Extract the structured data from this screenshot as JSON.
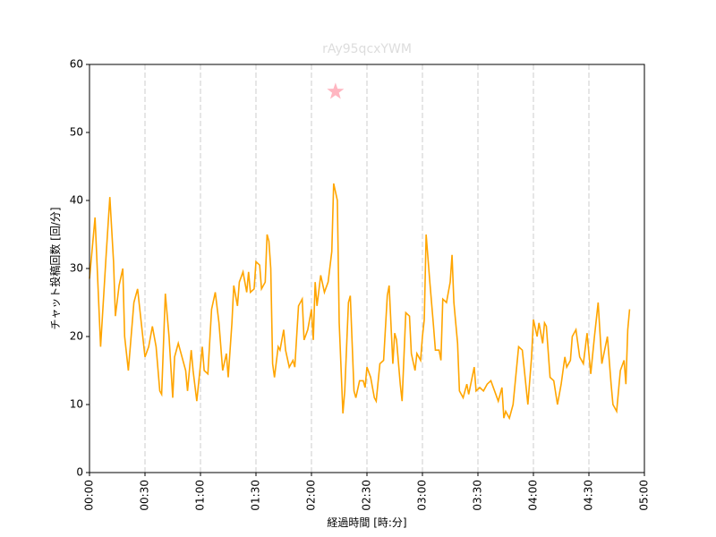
{
  "chart_data": {
    "type": "line",
    "title": "rAy95qcxYWM",
    "xlabel": "経過時間 [時:分]",
    "ylabel": "チャット投稿回数 [回/分]",
    "xlim": [
      0,
      300
    ],
    "ylim": [
      0,
      60
    ],
    "xticks": [
      {
        "value": 0,
        "label": "00:00"
      },
      {
        "value": 30,
        "label": "00:30"
      },
      {
        "value": 60,
        "label": "01:00"
      },
      {
        "value": 90,
        "label": "01:30"
      },
      {
        "value": 120,
        "label": "02:00"
      },
      {
        "value": 150,
        "label": "02:30"
      },
      {
        "value": 180,
        "label": "03:00"
      },
      {
        "value": 210,
        "label": "03:30"
      },
      {
        "value": 240,
        "label": "04:00"
      },
      {
        "value": 270,
        "label": "04:30"
      },
      {
        "value": 300,
        "label": "05:00"
      }
    ],
    "yticks": [
      0,
      10,
      20,
      30,
      40,
      50,
      60
    ],
    "grid": "x",
    "series": [
      {
        "color": "#ffa500",
        "x": [
          0,
          3,
          6,
          9,
          11,
          13,
          14,
          16,
          18,
          19,
          21,
          24,
          26,
          28,
          30,
          32,
          34,
          36,
          38,
          39,
          41,
          43,
          45,
          46,
          48,
          50,
          52,
          53,
          55,
          56,
          58,
          61,
          62,
          64,
          66,
          68,
          70,
          72,
          74,
          75,
          77,
          78,
          80,
          81,
          83,
          85,
          86,
          87,
          89,
          90,
          92,
          93,
          95,
          96,
          97,
          98,
          99,
          100,
          102,
          103,
          105,
          106,
          108,
          110,
          111,
          113,
          115,
          116,
          118,
          120,
          121,
          122,
          123,
          125,
          127,
          129,
          131,
          132,
          134,
          135,
          137,
          138,
          140,
          141,
          143,
          144,
          146,
          148,
          149,
          150,
          152,
          154,
          155,
          157,
          159,
          161,
          162,
          164,
          165,
          166,
          168,
          169,
          171,
          173,
          174,
          176,
          177,
          179,
          180,
          181,
          182,
          184,
          186,
          187,
          189,
          190,
          191,
          193,
          195,
          196,
          197,
          199,
          200,
          202,
          204,
          205,
          208,
          209,
          211,
          213,
          215,
          217,
          219,
          221,
          223,
          224,
          225,
          227,
          229,
          232,
          234,
          237,
          239,
          240,
          242,
          243,
          245,
          246,
          247,
          249,
          251,
          253,
          255,
          257,
          258,
          260,
          261,
          263,
          265,
          267,
          269,
          271,
          273,
          275,
          277,
          280,
          282,
          283,
          285,
          287,
          289,
          290,
          291,
          292
        ],
        "values": [
          28.5,
          37.5,
          18.5,
          32,
          40.5,
          31,
          23,
          27.5,
          30,
          20,
          15,
          25,
          27,
          22,
          17,
          18.5,
          21.5,
          18.5,
          12,
          11.5,
          26.3,
          20,
          11,
          17,
          19,
          17,
          15,
          12,
          18,
          15,
          10.5,
          18.5,
          15,
          14.5,
          24,
          26.5,
          22,
          15,
          17.5,
          14,
          22,
          27.5,
          24.5,
          28,
          29.5,
          26.5,
          29.5,
          26.5,
          27,
          31,
          30.5,
          27,
          28,
          35,
          34,
          30,
          16,
          14,
          18.5,
          18,
          21,
          18,
          15.5,
          16.5,
          15.5,
          24.5,
          25.5,
          19.5,
          21,
          24,
          19.5,
          28,
          24.5,
          29,
          26.5,
          28,
          32.5,
          42.5,
          40,
          22,
          8.7,
          12,
          25,
          26,
          12,
          11,
          13.5,
          13.5,
          12.5,
          15.5,
          14,
          11,
          10.5,
          16,
          16.5,
          26,
          27.5,
          16,
          20.5,
          19.5,
          13,
          10.5,
          23.5,
          23,
          17.5,
          15,
          17.5,
          16.5,
          20,
          22.5,
          35,
          28,
          21.5,
          18,
          18,
          16.5,
          25.5,
          25,
          28,
          32,
          25,
          19,
          12,
          11,
          13,
          11.5,
          15.5,
          12,
          12.5,
          12,
          13,
          13.5,
          12,
          10.5,
          12.5,
          8,
          9,
          8,
          10,
          18.5,
          18,
          10,
          17,
          22.5,
          20,
          22,
          19,
          22,
          21.5,
          14,
          13.5,
          10,
          13,
          17,
          15.5,
          16.5,
          20,
          21,
          17,
          16,
          20.5,
          14.5,
          20,
          25,
          16,
          20,
          13,
          10,
          9,
          15,
          16.5,
          13,
          21,
          24
        ]
      }
    ],
    "peak": {
      "x": 133,
      "y": 56,
      "color": "#ffb6c1"
    }
  }
}
